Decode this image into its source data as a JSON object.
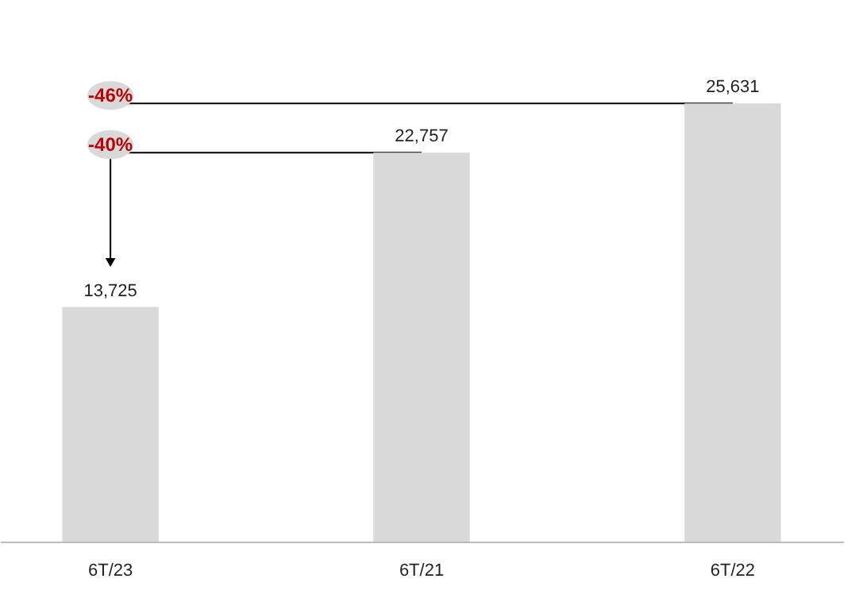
{
  "chart_data": {
    "type": "bar",
    "categories": [
      "6T/23",
      "6T/21",
      "6T/22"
    ],
    "values": [
      13725,
      22757,
      25631
    ],
    "color": "#d9d9d9",
    "value_labels": [
      "13,725",
      "22,757",
      "25,631"
    ],
    "ref_lines": [
      {
        "axis": "y",
        "value": 25631
      },
      {
        "axis": "y",
        "value": 22757
      }
    ],
    "annotations": [
      "-46%",
      "-40%"
    ]
  }
}
